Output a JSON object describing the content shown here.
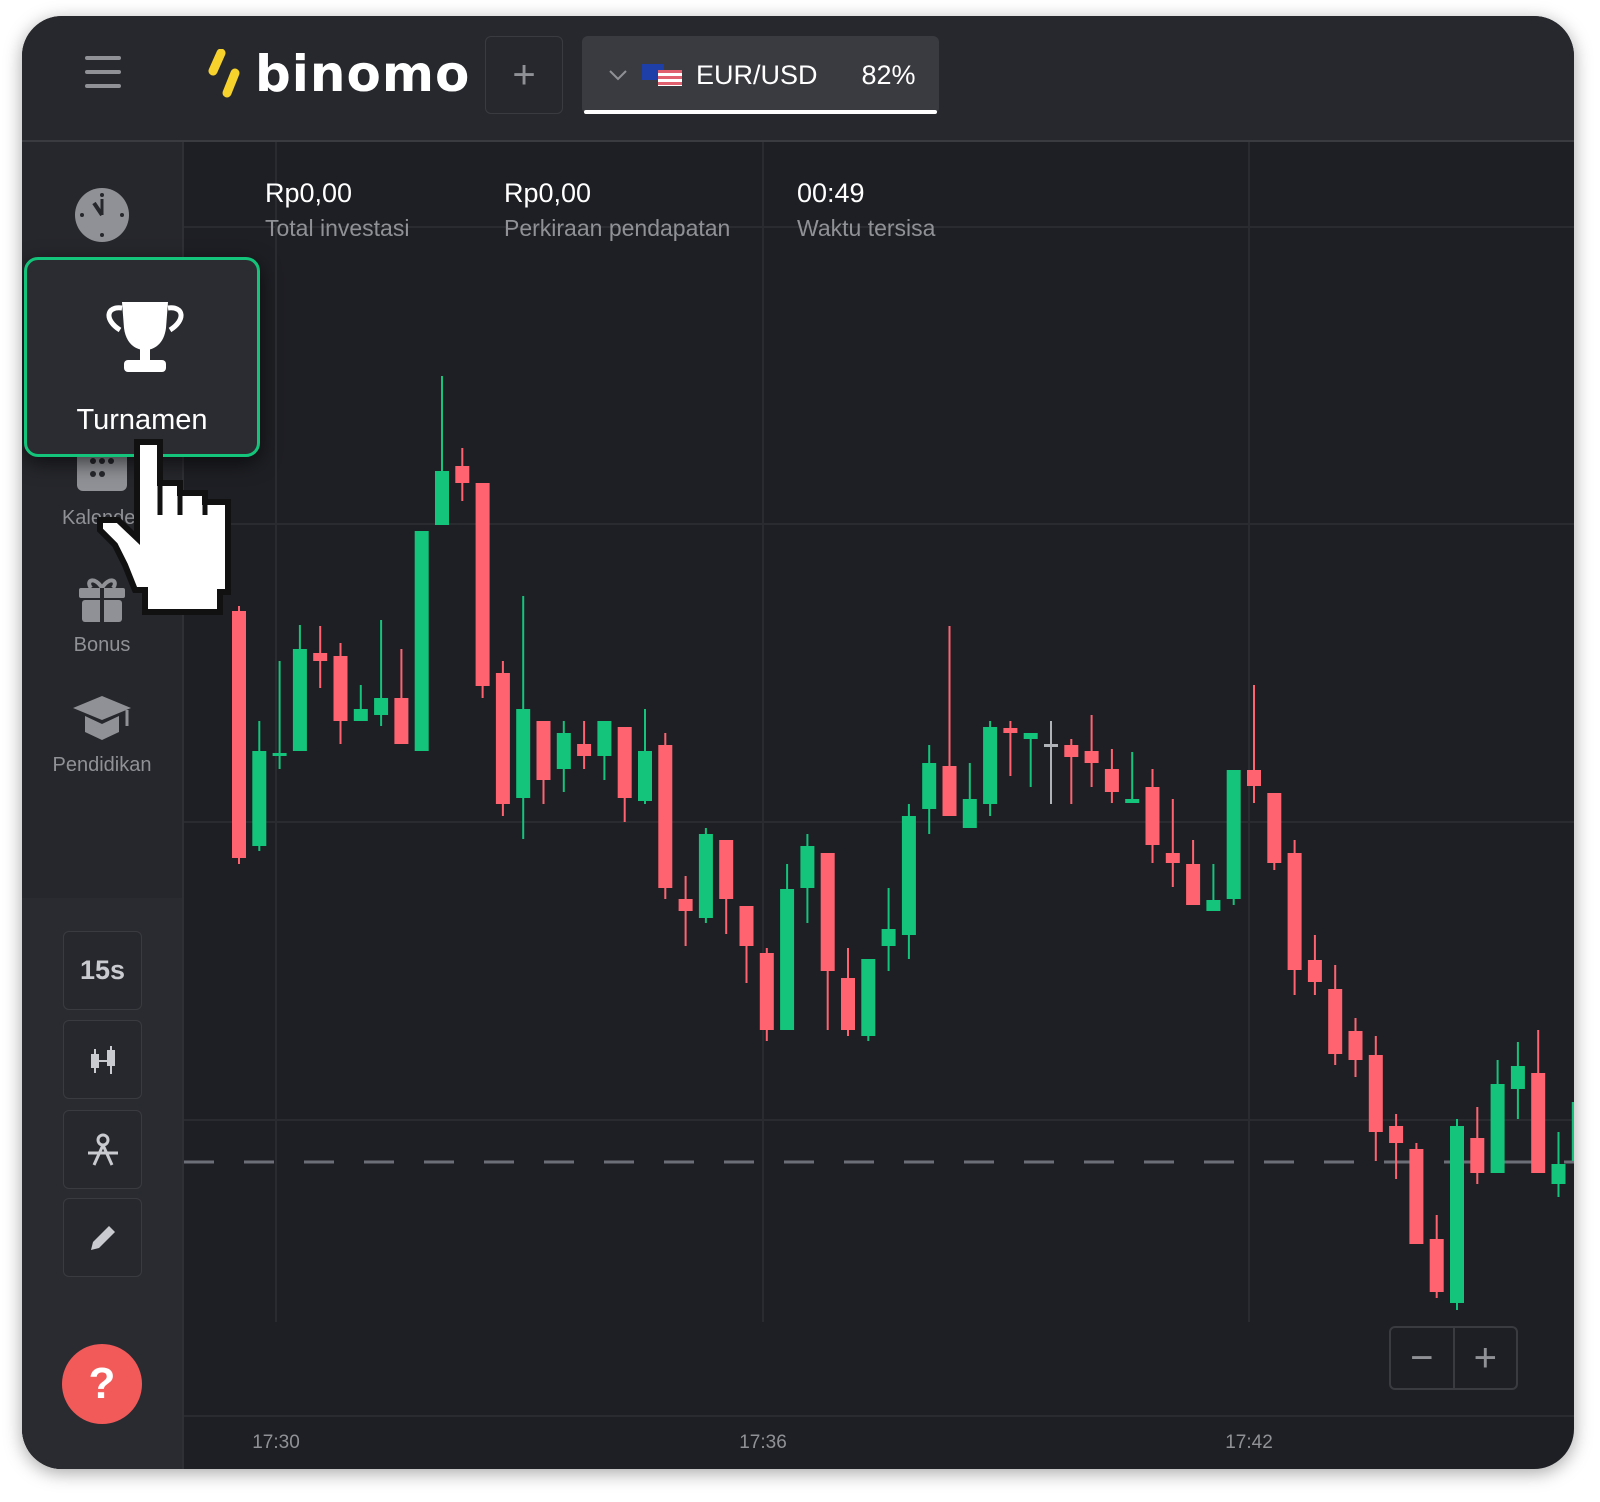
{
  "header": {
    "menu_icon": "hamburger-icon",
    "logo_text": "binomo",
    "add_asset_icon": "plus-icon",
    "asset": {
      "name": "EUR/USD",
      "payout": "82%",
      "flag_icon": "eu-us-flag-icon"
    }
  },
  "sidebar": {
    "items": [
      {
        "label": "",
        "icon": "clock-icon"
      },
      {
        "label": "Turnamen",
        "icon": "trophy-icon",
        "highlighted": true
      },
      {
        "label": "Kalender",
        "icon": "calendar-icon"
      },
      {
        "label": "Bonus",
        "icon": "gift-icon"
      },
      {
        "label": "Pendidikan",
        "icon": "graduation-cap-icon"
      }
    ],
    "tools": {
      "timeframe": "15s",
      "chart_type_icon": "candlestick-icon",
      "indicators_icon": "indicators-icon",
      "draw_icon": "pencil-icon"
    },
    "help_label": "?"
  },
  "stats": [
    {
      "value": "Rp0,00",
      "label": "Total investasi"
    },
    {
      "value": "Rp0,00",
      "label": "Perkiraan pendapatan"
    },
    {
      "value": "00:49",
      "label": "Waktu tersisa"
    }
  ],
  "zoom": {
    "minus": "−",
    "plus": "+"
  },
  "colors": {
    "up": "#13c47a",
    "down": "#ff6370",
    "neutral": "#b0b3b8",
    "accent": "#13c47a",
    "help": "#f25a5a"
  },
  "chart_data": {
    "type": "candlestick",
    "x_tick_labels": [
      "17:30",
      "17:36",
      "17:42"
    ],
    "grid": true,
    "price_axis_labels": false,
    "current_price_line": 25.4,
    "candles_ohlc": [
      [
        80.5,
        81.0,
        55.2,
        55.8
      ],
      [
        57.0,
        69.5,
        56.5,
        66.5
      ],
      [
        66.0,
        75.5,
        64.7,
        66.3
      ],
      [
        66.5,
        79.1,
        66.5,
        76.7
      ],
      [
        76.3,
        79.0,
        72.8,
        75.5
      ],
      [
        76.0,
        77.3,
        67.2,
        69.5
      ],
      [
        69.5,
        73.1,
        69.5,
        70.7
      ],
      [
        70.1,
        79.6,
        69.0,
        71.8
      ],
      [
        71.8,
        76.7,
        67.2,
        67.2
      ],
      [
        66.5,
        88.5,
        66.5,
        88.5
      ],
      [
        89.1,
        104.0,
        89.1,
        94.5
      ],
      [
        95.0,
        96.8,
        91.5,
        93.3
      ],
      [
        93.3,
        93.3,
        71.8,
        73.0
      ],
      [
        74.3,
        75.5,
        60.0,
        61.2
      ],
      [
        61.8,
        82.0,
        57.7,
        70.7
      ],
      [
        69.5,
        69.5,
        61.2,
        63.6
      ],
      [
        64.7,
        69.5,
        62.4,
        68.3
      ],
      [
        67.2,
        69.5,
        64.7,
        66.0
      ],
      [
        66.0,
        69.5,
        63.6,
        69.5
      ],
      [
        68.9,
        68.9,
        59.4,
        61.8
      ],
      [
        61.5,
        70.7,
        61.2,
        66.5
      ],
      [
        67.1,
        68.3,
        51.7,
        52.8
      ],
      [
        51.7,
        54.0,
        47.0,
        50.5
      ],
      [
        49.8,
        58.8,
        49.3,
        58.2
      ],
      [
        57.6,
        57.6,
        48.2,
        51.7
      ],
      [
        51.0,
        51.0,
        43.3,
        47.0
      ],
      [
        46.3,
        46.8,
        37.5,
        38.6
      ],
      [
        38.6,
        55.2,
        38.6,
        52.7
      ],
      [
        52.8,
        58.2,
        49.3,
        57.0
      ],
      [
        56.3,
        56.3,
        38.6,
        44.5
      ],
      [
        43.8,
        46.8,
        38.0,
        38.6
      ],
      [
        38.0,
        45.7,
        37.5,
        45.7
      ],
      [
        47.0,
        52.8,
        44.5,
        48.7
      ],
      [
        48.1,
        61.2,
        45.7,
        60.0
      ],
      [
        60.7,
        67.1,
        58.2,
        65.3
      ],
      [
        65.0,
        79.0,
        60.0,
        60.0
      ],
      [
        58.8,
        65.3,
        58.8,
        61.7
      ],
      [
        61.2,
        69.5,
        60.0,
        68.9
      ],
      [
        68.8,
        69.5,
        64.0,
        68.3
      ],
      [
        67.7,
        68.3,
        62.9,
        68.3
      ],
      [
        67.2,
        69.5,
        61.2,
        67.2
      ],
      [
        67.1,
        67.7,
        61.2,
        65.9
      ],
      [
        66.5,
        70.1,
        62.9,
        65.3
      ],
      [
        64.7,
        66.7,
        61.3,
        62.4
      ],
      [
        61.3,
        66.4,
        61.3,
        61.7
      ],
      [
        62.9,
        64.7,
        55.3,
        57.1
      ],
      [
        56.3,
        61.7,
        52.9,
        55.3
      ],
      [
        55.2,
        57.6,
        51.1,
        51.1
      ],
      [
        50.5,
        55.2,
        50.5,
        51.6
      ],
      [
        51.7,
        64.6,
        51.1,
        64.6
      ],
      [
        64.6,
        73.1,
        61.3,
        63.0
      ],
      [
        62.3,
        62.3,
        54.6,
        55.3
      ],
      [
        56.3,
        57.6,
        42.1,
        44.6
      ],
      [
        45.6,
        48.1,
        42.1,
        43.4
      ],
      [
        42.7,
        45.1,
        35.1,
        36.2
      ],
      [
        38.5,
        39.8,
        33.9,
        35.6
      ],
      [
        36.1,
        38.0,
        25.5,
        28.4
      ],
      [
        29.0,
        30.2,
        23.7,
        27.3
      ],
      [
        26.7,
        27.3,
        17.2,
        17.2
      ],
      [
        17.7,
        20.1,
        11.8,
        12.4
      ],
      [
        11.3,
        29.7,
        10.6,
        29.0
      ],
      [
        27.8,
        30.9,
        23.2,
        24.3
      ],
      [
        24.3,
        35.6,
        24.3,
        33.2
      ],
      [
        32.7,
        37.4,
        29.7,
        35.0
      ],
      [
        34.3,
        38.6,
        24.3,
        24.3
      ],
      [
        23.2,
        28.4,
        21.9,
        25.2
      ],
      [
        25.5,
        35.0,
        25.5,
        31.4
      ],
      [
        31.1,
        34.5,
        30.2,
        30.6
      ]
    ]
  }
}
